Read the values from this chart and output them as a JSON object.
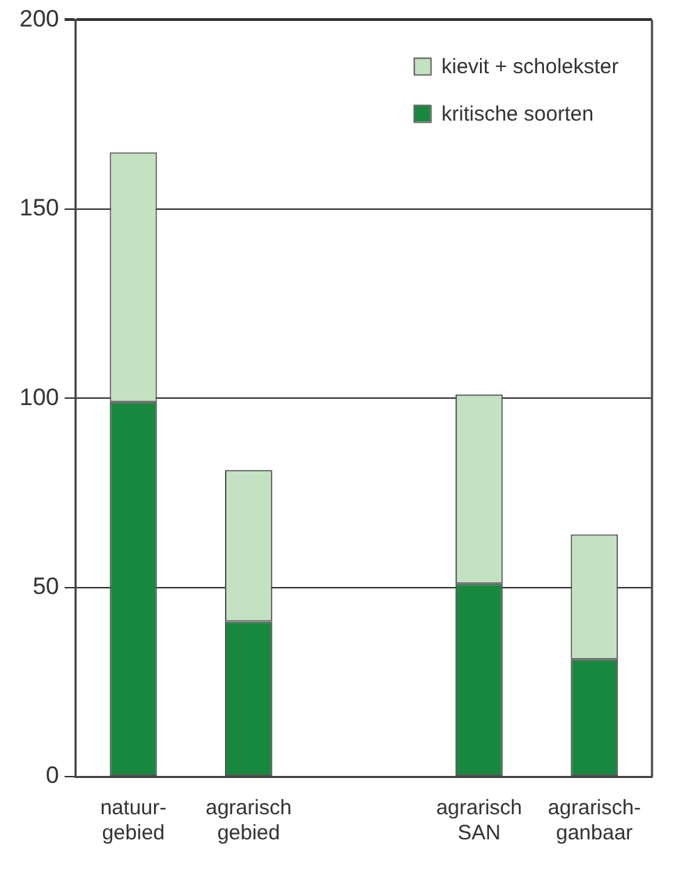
{
  "chart_data": {
    "type": "bar",
    "stacked": true,
    "categories": [
      "natuur-\ngebied",
      "agrarisch\ngebied",
      null,
      "agrarisch\nSAN",
      "agrarisch-\nganbaar"
    ],
    "series": [
      {
        "name": "kritische soorten",
        "color": "#18883f",
        "values": [
          99,
          41,
          null,
          51,
          31
        ]
      },
      {
        "name": "kievit + scholekster",
        "color": "#c3e2c2",
        "values": [
          66,
          40,
          null,
          50,
          33
        ]
      }
    ],
    "ylim": [
      0,
      200
    ],
    "yticks": [
      0,
      50,
      100,
      150,
      200
    ],
    "grid": "y",
    "legend": "top right"
  }
}
